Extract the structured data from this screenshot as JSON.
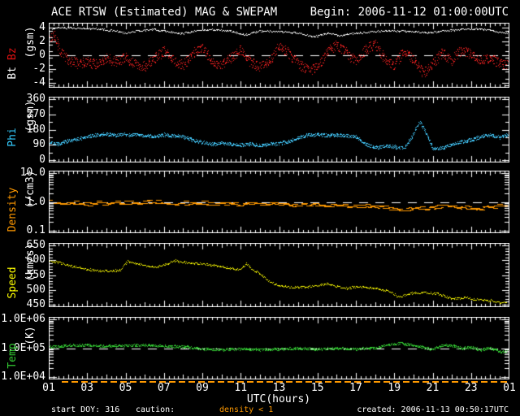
{
  "header": {
    "title": "ACE RTSW (Estimated) MAG & SWEPAM",
    "begin": "Begin: 2006-11-12 01:00:00UTC"
  },
  "footer": {
    "start": "start DOY: 316",
    "caution": "caution:",
    "caution_value": "density < 1",
    "created": "created: 2006-11-13 00:50:17UTC"
  },
  "colors": {
    "background": "#000000",
    "frame": "#FFFFFF",
    "bt": "#FFFFFF",
    "bz": "#EE1515",
    "phi": "#44CCFF",
    "density": "#FF9900",
    "speed": "#FFFF00",
    "temp": "#33CC33",
    "caution_orange": "#FF9900"
  },
  "xaxis": {
    "label": "UTC(hours)",
    "range": [
      1,
      25
    ],
    "tick_hours": [
      1,
      3,
      5,
      7,
      9,
      11,
      13,
      15,
      17,
      19,
      21,
      23,
      25
    ],
    "tick_labels": [
      "01",
      "03",
      "05",
      "07",
      "09",
      "11",
      "13",
      "15",
      "17",
      "19",
      "21",
      "23",
      "01"
    ],
    "minor_step": 0.25
  },
  "chart_data": [
    {
      "id": "mag",
      "type": "scatter",
      "scale": "linear",
      "ylim": [
        -4.4,
        4.4
      ],
      "minor_step": 1,
      "ref_line": 0,
      "unit_label": "(gsm)",
      "name_parts": [
        {
          "text": "Bt ",
          "color": "#FFFFFF"
        },
        {
          "text": "Bz",
          "color": "#DD1111"
        }
      ],
      "yticks": [
        {
          "v": 4,
          "t": "4"
        },
        {
          "v": 2,
          "t": "2"
        },
        {
          "v": 0,
          "t": "0"
        },
        {
          "v": -2,
          "t": "-2"
        },
        {
          "v": -4,
          "t": "-4"
        }
      ],
      "series": [
        {
          "name": "Bt",
          "color": "#FFFFFF",
          "jitter": 0.12,
          "dots": 1,
          "dash": false,
          "x": [
            1,
            1.5,
            2.5,
            3.5,
            4.5,
            5,
            5.5,
            6.5,
            7.5,
            8,
            8.5,
            9.5,
            10.5,
            11.2,
            12,
            13,
            14,
            14.8,
            15.5,
            16.2,
            17,
            18,
            19,
            20,
            20.7,
            21.5,
            22.5,
            23.2,
            24,
            24.5,
            25
          ],
          "v": [
            3.9,
            4.1,
            4.0,
            3.9,
            3.6,
            3.2,
            3.6,
            3.8,
            3.4,
            3.2,
            3.6,
            3.8,
            3.6,
            3.0,
            3.6,
            3.5,
            3.3,
            2.7,
            3.3,
            2.9,
            3.3,
            3.5,
            3.6,
            3.5,
            3.3,
            3.6,
            3.8,
            3.9,
            3.7,
            3.4,
            3.3
          ]
        },
        {
          "name": "Bz",
          "color": "#FF2222",
          "jitter": 0.75,
          "dots": 2,
          "dash": false,
          "x": [
            1,
            1.3,
            1.6,
            2,
            2.5,
            3,
            3.5,
            4,
            4.5,
            5,
            5.5,
            6,
            6.5,
            7,
            7.5,
            8,
            8.5,
            9,
            9.5,
            10,
            10.5,
            11,
            11.5,
            12,
            12.5,
            13,
            13.5,
            14,
            14.5,
            15,
            15.5,
            16,
            16.5,
            17,
            17.5,
            18,
            18.5,
            19,
            19.5,
            20,
            20.5,
            21,
            21.5,
            22,
            22.5,
            23,
            23.5,
            24,
            24.5,
            25
          ],
          "v": [
            2.6,
            3.0,
            0.5,
            -0.6,
            -1.2,
            -0.9,
            -1.4,
            -0.4,
            -1.0,
            -0.3,
            -1.3,
            -1.6,
            -0.4,
            0.6,
            -0.8,
            -1.5,
            0.3,
            1.2,
            -0.8,
            -1.6,
            -0.3,
            0.8,
            -0.9,
            -1.8,
            -0.9,
            1.4,
            0.3,
            -1.2,
            -2.2,
            -1.8,
            0.5,
            1.6,
            0.4,
            -0.9,
            0.8,
            1.8,
            -0.6,
            -1.4,
            0.6,
            -0.6,
            -2.6,
            -1.2,
            0.4,
            -0.8,
            0.9,
            0.2,
            -0.9,
            -0.3,
            -1.2,
            -1.5
          ]
        }
      ]
    },
    {
      "id": "phi",
      "type": "scatter",
      "scale": "linear",
      "ylim": [
        0,
        360
      ],
      "minor_step": 45,
      "ref_line": null,
      "unit_label": "(gsm)",
      "name_parts": [
        {
          "text": "Phi",
          "color": "#33CCFF"
        }
      ],
      "yticks": [
        {
          "v": 360,
          "t": "360"
        },
        {
          "v": 270,
          "t": "270"
        },
        {
          "v": 180,
          "t": "180"
        },
        {
          "v": 90,
          "t": "90"
        },
        {
          "v": 0,
          "t": "0"
        }
      ],
      "series": [
        {
          "name": "Phi",
          "color": "#44CCFF",
          "jitter": 10,
          "dots": 2,
          "dash": false,
          "x": [
            1,
            1.5,
            2,
            2.5,
            3,
            3.5,
            4,
            4.5,
            5,
            5.5,
            6,
            6.5,
            7,
            7.5,
            8,
            8.5,
            9,
            9.5,
            10,
            10.5,
            11,
            11.5,
            12,
            12.5,
            13,
            13.5,
            14,
            14.5,
            15,
            15.5,
            16,
            16.5,
            17,
            17.5,
            18,
            18.5,
            19,
            19.5,
            20,
            20.3,
            20.6,
            21,
            21.5,
            22,
            22.5,
            23,
            23.5,
            24,
            24.5,
            25
          ],
          "v": [
            105,
            95,
            115,
            125,
            140,
            150,
            155,
            148,
            152,
            150,
            148,
            140,
            152,
            145,
            140,
            120,
            105,
            95,
            100,
            95,
            90,
            95,
            88,
            95,
            100,
            110,
            135,
            150,
            152,
            148,
            150,
            145,
            140,
            95,
            75,
            85,
            80,
            70,
            155,
            230,
            175,
            70,
            75,
            95,
            110,
            120,
            140,
            150,
            135,
            155
          ]
        }
      ]
    },
    {
      "id": "density",
      "type": "scatter",
      "scale": "log",
      "ylim": [
        0.1,
        10
      ],
      "minor_step": null,
      "ref_line": 1.0,
      "unit_label": "(/cm3)",
      "name_parts": [
        {
          "text": "Density",
          "color": "#FF9900"
        }
      ],
      "yticks": [
        {
          "v": 10,
          "t": "10.0"
        },
        {
          "v": 1,
          "t": "1.0"
        },
        {
          "v": 0.1,
          "t": "0.1"
        }
      ],
      "series": [
        {
          "name": "Density",
          "color": "#FF9900",
          "jitter": 0.055,
          "dots": 2,
          "dash": true,
          "x": [
            1,
            1.3,
            1.7,
            2,
            3,
            4,
            5,
            6,
            6.5,
            7,
            8,
            9,
            10,
            11,
            12,
            13,
            14,
            15,
            16,
            17,
            18,
            19,
            19.5,
            20,
            21,
            21.5,
            22,
            23,
            23.5,
            24,
            24.5,
            25
          ],
          "v": [
            1.15,
            1.1,
            0.95,
            0.9,
            0.92,
            0.9,
            0.95,
            1.0,
            1.05,
            0.95,
            0.92,
            0.95,
            0.9,
            0.88,
            0.9,
            0.85,
            0.82,
            0.85,
            0.8,
            0.78,
            0.7,
            0.6,
            0.55,
            0.6,
            0.65,
            0.75,
            0.72,
            0.65,
            0.6,
            0.7,
            0.75,
            0.7
          ]
        }
      ]
    },
    {
      "id": "speed",
      "type": "scatter",
      "scale": "linear",
      "ylim": [
        450,
        650
      ],
      "minor_step": 10,
      "ref_line": null,
      "unit_label": "(km/s)",
      "name_parts": [
        {
          "text": "Speed",
          "color": "#FFFF00"
        }
      ],
      "yticks": [
        {
          "v": 650,
          "t": "650"
        },
        {
          "v": 600,
          "t": "600"
        },
        {
          "v": 550,
          "t": "550"
        },
        {
          "v": 500,
          "t": "500"
        },
        {
          "v": 450,
          "t": "450"
        }
      ],
      "series": [
        {
          "name": "Speed",
          "color": "#FFFF00",
          "jitter": 3.5,
          "dots": 1,
          "dash": false,
          "x": [
            1,
            1.5,
            2,
            2.5,
            3,
            4,
            4.7,
            5.1,
            5.5,
            6,
            6.6,
            7.2,
            7.6,
            8.2,
            9,
            9.6,
            10.3,
            11,
            11.3,
            11.6,
            12,
            12.5,
            13,
            13.5,
            14.5,
            15.5,
            16,
            16.5,
            17.2,
            18,
            18.7,
            19.2,
            19.5,
            20,
            20.7,
            21.3,
            22,
            22.7,
            23.3,
            24,
            24.5,
            25
          ],
          "v": [
            600,
            593,
            583,
            576,
            570,
            564,
            567,
            597,
            589,
            583,
            577,
            591,
            599,
            592,
            589,
            583,
            575,
            570,
            590,
            568,
            556,
            528,
            515,
            510,
            511,
            520,
            512,
            506,
            512,
            506,
            497,
            478,
            482,
            491,
            492,
            488,
            470,
            474,
            468,
            465,
            458,
            460
          ]
        }
      ]
    },
    {
      "id": "temp",
      "type": "scatter",
      "scale": "log",
      "ylim": [
        10000,
        1000000
      ],
      "minor_step": null,
      "ref_line": 100000,
      "unit_label": "(K)",
      "name_parts": [
        {
          "text": "Temp",
          "color": "#33CC33"
        }
      ],
      "yticks": [
        {
          "v": 1000000,
          "t": "1.0E+06"
        },
        {
          "v": 100000,
          "t": "1.0E+05"
        },
        {
          "v": 10000,
          "t": "1.0E+04"
        }
      ],
      "series": [
        {
          "name": "Temp",
          "color": "#33CC33",
          "jitter": 0.045,
          "dots": 2,
          "dash": false,
          "x": [
            1,
            2,
            3,
            4,
            5,
            6,
            7,
            8,
            9,
            10,
            11,
            12,
            13,
            14,
            15,
            16,
            17,
            18,
            18.7,
            19.3,
            20,
            20.5,
            21,
            21.5,
            22,
            22.5,
            23,
            23.5,
            24,
            24.5,
            25
          ],
          "v": [
            110000,
            125000,
            130000,
            120000,
            125000,
            130000,
            120000,
            115000,
            95000,
            90000,
            95000,
            90000,
            95000,
            100000,
            95000,
            100000,
            95000,
            105000,
            135000,
            150000,
            130000,
            110000,
            90000,
            130000,
            125000,
            100000,
            110000,
            90000,
            105000,
            75000,
            85000
          ]
        }
      ]
    }
  ]
}
